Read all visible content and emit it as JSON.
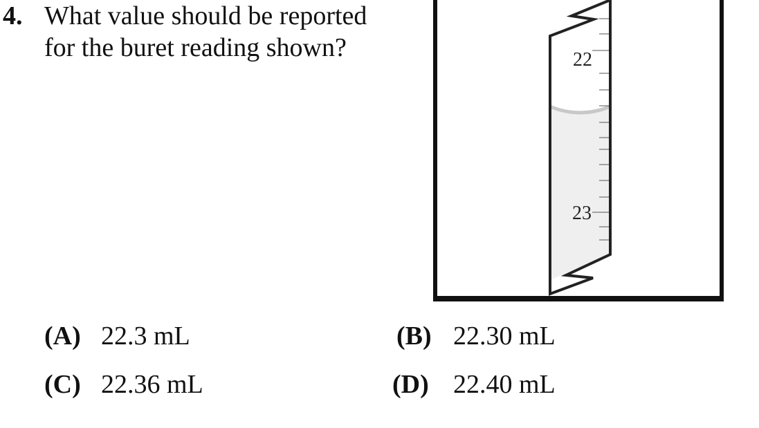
{
  "question": {
    "number": "4.",
    "text_lines": [
      "What value should be reported",
      "for the buret reading shown?"
    ]
  },
  "buret": {
    "labels": [
      "22",
      "23"
    ],
    "liquid_color": "#efefef",
    "meniscus_color": "#c8c8c8"
  },
  "choices": [
    {
      "letter": "(A)",
      "value": "22.3 mL"
    },
    {
      "letter": "(B)",
      "value": "22.30 mL"
    },
    {
      "letter": "(C)",
      "value": "22.36 mL"
    },
    {
      "letter": "(D)",
      "value": "22.40 mL"
    }
  ]
}
